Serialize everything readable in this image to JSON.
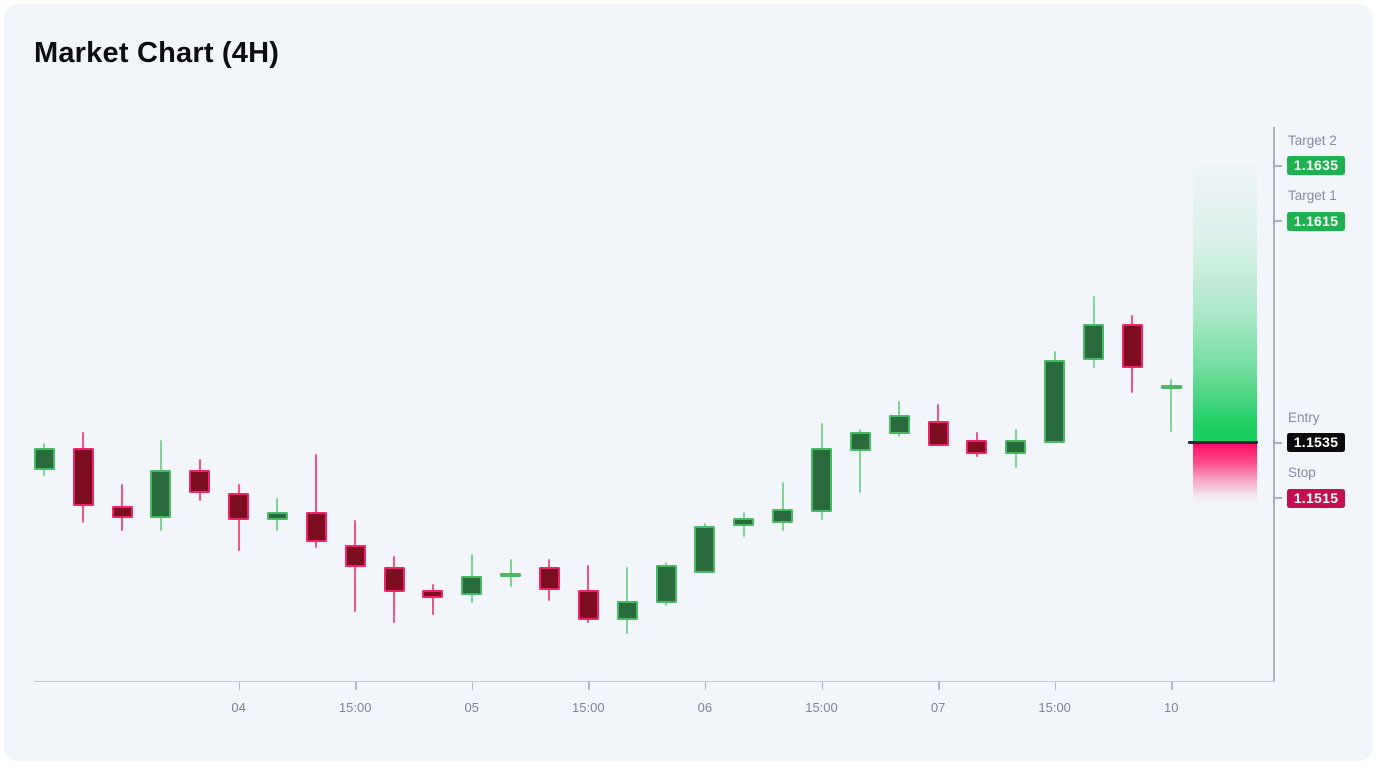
{
  "title": "Market Chart (4H)",
  "chart_data": {
    "type": "candlestick",
    "title": "Market Chart (4H)",
    "timeframe": "4H",
    "y_domain": [
      1.1449,
      1.1649
    ],
    "grid": false,
    "x_ticks": [
      {
        "at": 5,
        "label": "04"
      },
      {
        "at": 8,
        "label": "15:00"
      },
      {
        "at": 11,
        "label": "05"
      },
      {
        "at": 14,
        "label": "15:00"
      },
      {
        "at": 17,
        "label": "06"
      },
      {
        "at": 20,
        "label": "15:00"
      },
      {
        "at": 23,
        "label": "07"
      },
      {
        "at": 26,
        "label": "15:00"
      },
      {
        "at": 29,
        "label": "10"
      }
    ],
    "candles": [
      {
        "o": 1.1525,
        "h": 1.1535,
        "l": 1.1523,
        "c": 1.1533
      },
      {
        "o": 1.1533,
        "h": 1.1539,
        "l": 1.1506,
        "c": 1.1512
      },
      {
        "o": 1.1512,
        "h": 1.152,
        "l": 1.1503,
        "c": 1.1508
      },
      {
        "o": 1.1508,
        "h": 1.1536,
        "l": 1.1503,
        "c": 1.1525
      },
      {
        "o": 1.1525,
        "h": 1.1529,
        "l": 1.1514,
        "c": 1.1517
      },
      {
        "o": 1.1517,
        "h": 1.152,
        "l": 1.1496,
        "c": 1.1507
      },
      {
        "o": 1.1507,
        "h": 1.1515,
        "l": 1.1503,
        "c": 1.151
      },
      {
        "o": 1.151,
        "h": 1.1531,
        "l": 1.1497,
        "c": 1.1499
      },
      {
        "o": 1.1498,
        "h": 1.1507,
        "l": 1.1474,
        "c": 1.149
      },
      {
        "o": 1.149,
        "h": 1.1494,
        "l": 1.147,
        "c": 1.1481
      },
      {
        "o": 1.1482,
        "h": 1.1484,
        "l": 1.1473,
        "c": 1.1479
      },
      {
        "o": 1.148,
        "h": 1.1495,
        "l": 1.1477,
        "c": 1.1487
      },
      {
        "o": 1.1487,
        "h": 1.1493,
        "l": 1.1483,
        "c": 1.1488
      },
      {
        "o": 1.149,
        "h": 1.1493,
        "l": 1.1478,
        "c": 1.1482
      },
      {
        "o": 1.1482,
        "h": 1.1491,
        "l": 1.147,
        "c": 1.1471
      },
      {
        "o": 1.1471,
        "h": 1.149,
        "l": 1.1466,
        "c": 1.1478
      },
      {
        "o": 1.1477,
        "h": 1.1492,
        "l": 1.1476,
        "c": 1.1491
      },
      {
        "o": 1.1488,
        "h": 1.1506,
        "l": 1.1488,
        "c": 1.1505
      },
      {
        "o": 1.1505,
        "h": 1.151,
        "l": 1.1501,
        "c": 1.1508
      },
      {
        "o": 1.1506,
        "h": 1.1521,
        "l": 1.1503,
        "c": 1.1511
      },
      {
        "o": 1.151,
        "h": 1.1542,
        "l": 1.1507,
        "c": 1.1533
      },
      {
        "o": 1.1532,
        "h": 1.154,
        "l": 1.1517,
        "c": 1.1539
      },
      {
        "o": 1.1538,
        "h": 1.155,
        "l": 1.1537,
        "c": 1.1545
      },
      {
        "o": 1.1543,
        "h": 1.1549,
        "l": 1.1534,
        "c": 1.1534
      },
      {
        "o": 1.1536,
        "h": 1.1539,
        "l": 1.153,
        "c": 1.1531
      },
      {
        "o": 1.1531,
        "h": 1.154,
        "l": 1.1526,
        "c": 1.1536
      },
      {
        "o": 1.1535,
        "h": 1.1568,
        "l": 1.1535,
        "c": 1.1565
      },
      {
        "o": 1.1565,
        "h": 1.1588,
        "l": 1.1562,
        "c": 1.1578
      },
      {
        "o": 1.1578,
        "h": 1.1581,
        "l": 1.1553,
        "c": 1.1562
      },
      {
        "o": 1.1555,
        "h": 1.1558,
        "l": 1.1539,
        "c": 1.1556
      }
    ],
    "levels": {
      "target2": {
        "label": "Target 2",
        "value": "1.1635",
        "price": 1.1635
      },
      "target1": {
        "label": "Target 1",
        "value": "1.1615",
        "price": 1.1615
      },
      "entry": {
        "label": "Entry",
        "value": "1.1535",
        "price": 1.1535
      },
      "stop": {
        "label": "Stop",
        "value": "1.1515",
        "price": 1.1515
      }
    },
    "colors": {
      "bull_fill": "#2a6b3c",
      "bull_border": "#49b863",
      "bull_wick": "#7dd598",
      "bear_fill": "#7d0e1f",
      "bear_border": "#f0246a",
      "bear_wick": "#f05585",
      "profit_zone": "#17cd5e",
      "loss_zone": "#ff0a60",
      "entry_line": "#262b34",
      "badge_target": "#1fb14f",
      "badge_entry": "#0b0b0d",
      "badge_stop": "#c30e4f"
    }
  }
}
